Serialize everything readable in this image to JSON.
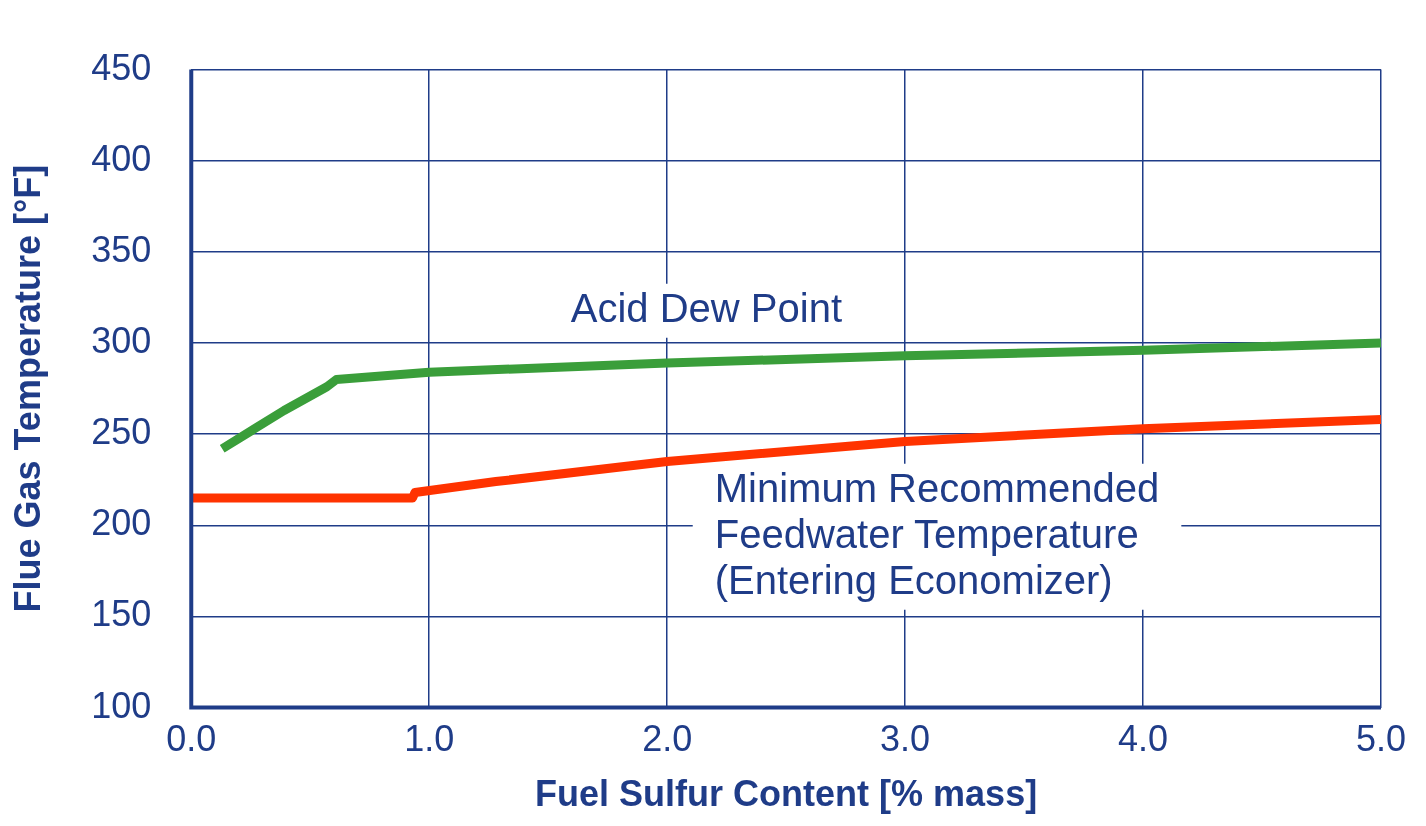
{
  "chart_data": {
    "type": "line",
    "xlabel": "Fuel Sulfur Content [% mass]",
    "ylabel": "Flue Gas Temperature [°F]",
    "xlim": [
      0,
      5
    ],
    "ylim": [
      100,
      450
    ],
    "xticks": [
      {
        "value": 0,
        "label": "0.0"
      },
      {
        "value": 1,
        "label": "1.0"
      },
      {
        "value": 2,
        "label": "2.0"
      },
      {
        "value": 3,
        "label": "3.0"
      },
      {
        "value": 4,
        "label": "4.0"
      },
      {
        "value": 5,
        "label": "5.0"
      }
    ],
    "yticks": [
      100,
      150,
      200,
      250,
      300,
      350,
      400,
      450
    ],
    "grid": true,
    "legend": false,
    "marker": "none",
    "line_style": "solid",
    "series": [
      {
        "name": "Acid Dew Point",
        "color": "#3a9e3a",
        "x": [
          0.13,
          0.39,
          0.57,
          0.61,
          1.0,
          2.0,
          3.0,
          4.0,
          5.0
        ],
        "values": [
          242,
          263,
          276,
          280,
          284,
          289,
          293,
          296,
          300
        ]
      },
      {
        "name": "Minimum Recommended Feedwater Temperature (Entering Economizer)",
        "color": "#ff3300",
        "x": [
          0,
          0.93,
          0.94,
          1.28,
          2.0,
          3.0,
          4.0,
          5.0
        ],
        "values": [
          215,
          215,
          218,
          224,
          235,
          246,
          253,
          258
        ]
      }
    ]
  }
}
